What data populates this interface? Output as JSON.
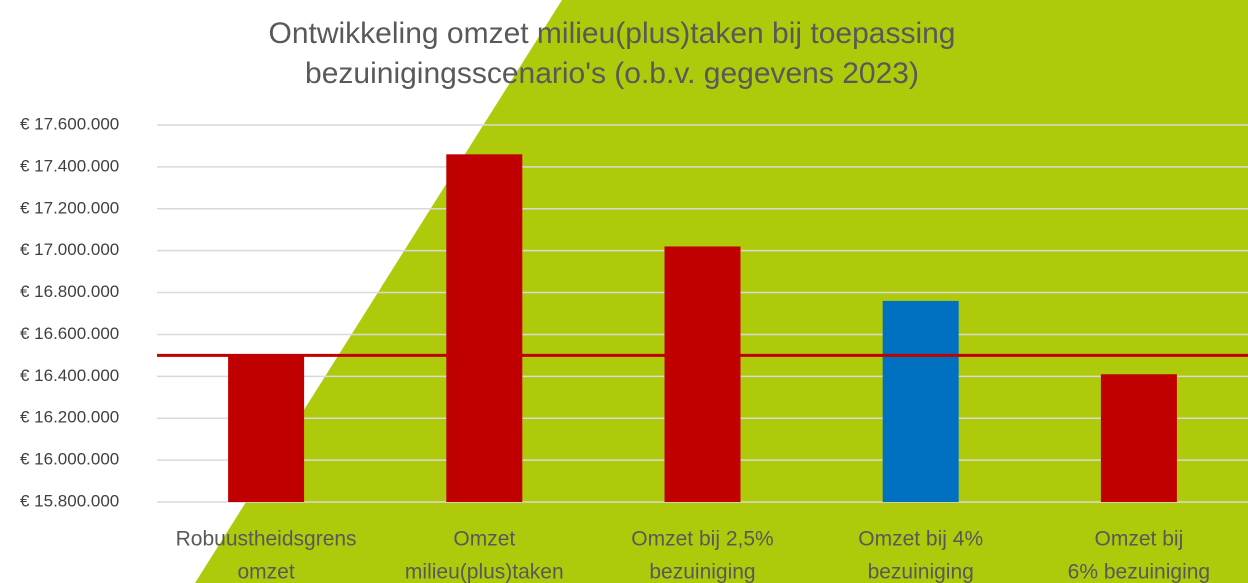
{
  "chart_data": {
    "type": "bar",
    "title": [
      "Ontwikkeling omzet milieu(plus)taken bij toepassing",
      "bezuinigingsscenario's (o.b.v. gegevens 2023)"
    ],
    "categories": [
      [
        "Robuustheidsgrens",
        "omzet"
      ],
      [
        "Omzet",
        "milieu(plus)taken"
      ],
      [
        "Omzet bij 2,5%",
        "bezuiniging"
      ],
      [
        "Omzet bij 4%",
        "bezuiniging"
      ],
      [
        "Omzet bij",
        "6% bezuiniging"
      ]
    ],
    "values": [
      16500000,
      17460000,
      17020000,
      16760000,
      16410000
    ],
    "colors": [
      "#c00000",
      "#c00000",
      "#c00000",
      "#0070c0",
      "#c00000"
    ],
    "reference_line": {
      "value": 16500000,
      "color": "#c00000"
    },
    "ylim": [
      15800000,
      17600000
    ],
    "yticks": [
      {
        "value": 15800000,
        "label": "€ 15.800.000"
      },
      {
        "value": 16000000,
        "label": "€ 16.000.000"
      },
      {
        "value": 16200000,
        "label": "€ 16.200.000"
      },
      {
        "value": 16400000,
        "label": "€ 16.400.000"
      },
      {
        "value": 16600000,
        "label": "€ 16.600.000"
      },
      {
        "value": 16800000,
        "label": "€ 16.800.000"
      },
      {
        "value": 17000000,
        "label": "€ 17.000.000"
      },
      {
        "value": 17200000,
        "label": "€ 17.200.000"
      },
      {
        "value": 17400000,
        "label": "€ 17.400.000"
      },
      {
        "value": 17600000,
        "label": "€ 17.600.000"
      }
    ],
    "grid": true
  }
}
